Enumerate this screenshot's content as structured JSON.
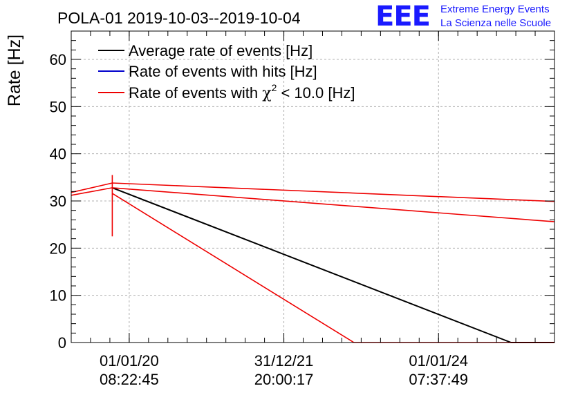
{
  "header": {
    "logo_text": "EEE",
    "logo_line1": "Extreme Energy Events",
    "logo_line2": "La Scienza nelle Scuole",
    "brand_color": "#1a1aff"
  },
  "chart_data": {
    "type": "line",
    "title": "POLA-01 2019-10-03--2019-10-04",
    "ylabel": "Rate [Hz]",
    "xlabel": "",
    "ylim": [
      0,
      66
    ],
    "xlim": [
      0,
      100
    ],
    "grid": true,
    "legend_position": "top-left",
    "y_ticks": [
      0,
      10,
      20,
      30,
      40,
      50,
      60
    ],
    "x_ticks": [
      {
        "at": 12,
        "date": "01/01/20",
        "time": "08:22:45"
      },
      {
        "at": 44,
        "date": "31/12/21",
        "time": "20:00:17"
      },
      {
        "at": 76,
        "date": "01/01/24",
        "time": "07:37:49"
      }
    ],
    "legend": [
      {
        "label": "Average rate of events [Hz]",
        "color": "#000000"
      },
      {
        "label": "Rate of events with hits [Hz]",
        "color": "#0000cc"
      },
      {
        "label_prefix": "Rate of events with ",
        "chi": "χ",
        "sup": "2",
        "label_suffix": " < 10.0 [Hz]",
        "color": "#ee0000"
      }
    ],
    "series": [
      {
        "name": "Average rate of events [Hz]",
        "color": "#000000",
        "segments": [
          [
            [
              8.5,
              32.8
            ],
            [
              91,
              0
            ],
            [
              100,
              0
            ]
          ]
        ]
      },
      {
        "name": "Rate of events with χ2 < 10.0 [Hz]",
        "color": "#ee0000",
        "segments": [
          [
            [
              0,
              31.8
            ],
            [
              8.5,
              33.8
            ],
            [
              100,
              29.9
            ]
          ],
          [
            [
              0,
              31.2
            ],
            [
              8.5,
              32.8
            ],
            [
              100,
              25.6
            ]
          ],
          [
            [
              8.5,
              31.6
            ],
            [
              58.5,
              0
            ],
            [
              100,
              0
            ]
          ],
          [
            [
              8.5,
              22.5
            ],
            [
              8.5,
              35.5
            ]
          ]
        ]
      }
    ]
  }
}
